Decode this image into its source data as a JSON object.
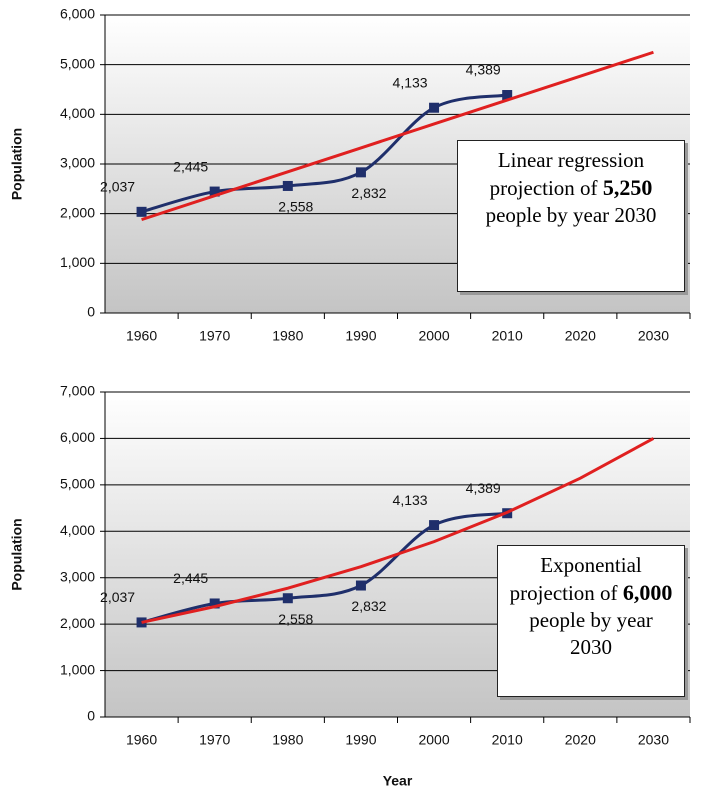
{
  "chart_data": [
    {
      "type": "line",
      "ylabel": "Population",
      "categories": [
        "1960",
        "1970",
        "1980",
        "1990",
        "2000",
        "2010",
        "2020",
        "2030"
      ],
      "series": [
        {
          "color": "#1f2f6b",
          "values": [
            2037,
            2445,
            2558,
            2832,
            4133,
            4389,
            null,
            null
          ],
          "value_labels": [
            "2,037",
            "2,445",
            "2,558",
            "2,832",
            "4,133",
            "4,389",
            null,
            null
          ],
          "markers": true
        },
        {
          "color": "#e02020",
          "values": [
            1880,
            2361,
            2843,
            3324,
            3806,
            4287,
            4769,
            5250
          ]
        }
      ],
      "ylim": [
        0,
        6000
      ],
      "yticks": [
        0,
        {
          "value": 1000,
          "label": "1,000"
        },
        {
          "value": 2000,
          "label": "2,000"
        },
        {
          "value": 3000,
          "label": "3,000"
        },
        {
          "value": 4000,
          "label": "4,000"
        },
        {
          "value": 5000,
          "label": "5,000"
        },
        {
          "value": 6000,
          "label": "6,000"
        }
      ],
      "grid": true,
      "annotation": {
        "pre": "Linear regression projection of",
        "bold": "5,250",
        "post": "people by year 2030"
      }
    },
    {
      "type": "line",
      "ylabel": "Population",
      "xlabel": "Year",
      "categories": [
        "1960",
        "1970",
        "1980",
        "1990",
        "2000",
        "2010",
        "2020",
        "2030"
      ],
      "series": [
        {
          "color": "#1f2f6b",
          "values": [
            2037,
            2445,
            2558,
            2832,
            4133,
            4389,
            null,
            null
          ],
          "value_labels": [
            "2,037",
            "2,445",
            "2,558",
            "2,832",
            "4,133",
            "4,389",
            null,
            null
          ],
          "markers": true
        },
        {
          "color": "#e02020",
          "values": [
            2037,
            2377,
            2774,
            3237,
            3777,
            4408,
            5143,
            6000
          ]
        }
      ],
      "ylim": [
        0,
        7000
      ],
      "yticks": [
        0,
        {
          "value": 1000,
          "label": "1,000"
        },
        {
          "value": 2000,
          "label": "2,000"
        },
        {
          "value": 3000,
          "label": "3,000"
        },
        {
          "value": 4000,
          "label": "4,000"
        },
        {
          "value": 5000,
          "label": "5,000"
        },
        {
          "value": 6000,
          "label": "6,000"
        },
        {
          "value": 7000,
          "label": "7,000"
        }
      ],
      "grid": true,
      "annotation": {
        "pre": "Exponential projection of",
        "bold": "6,000",
        "post": "people by year 2030"
      }
    }
  ]
}
